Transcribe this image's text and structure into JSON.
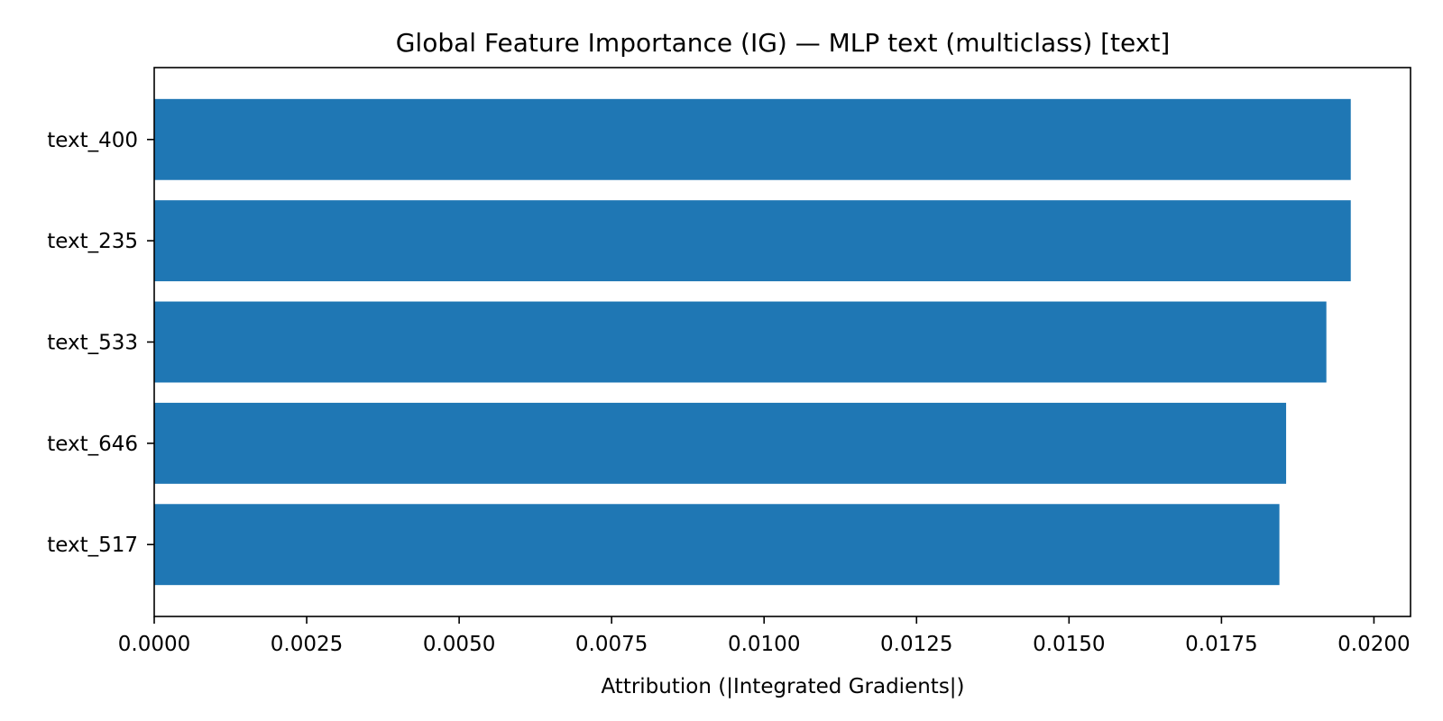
{
  "colors": {
    "bar": "#1f77b4",
    "axis": "#000000",
    "background": "#ffffff"
  },
  "chart_data": {
    "type": "bar",
    "orientation": "horizontal",
    "title": "Global Feature Importance (IG) — MLP text (multiclass) [text]",
    "xlabel": "Attribution (|Integrated Gradients|)",
    "ylabel": "",
    "categories": [
      "text_400",
      "text_235",
      "text_533",
      "text_646",
      "text_517"
    ],
    "values": [
      0.01962,
      0.01962,
      0.01922,
      0.01856,
      0.01845
    ],
    "xlim": [
      0,
      0.0206
    ],
    "xticks": [
      0.0,
      0.0025,
      0.005,
      0.0075,
      0.01,
      0.0125,
      0.015,
      0.0175,
      0.02
    ],
    "xtick_labels": [
      "0.0000",
      "0.0025",
      "0.0050",
      "0.0075",
      "0.0100",
      "0.0125",
      "0.0150",
      "0.0175",
      "0.0200"
    ],
    "grid": false,
    "legend": "none"
  }
}
